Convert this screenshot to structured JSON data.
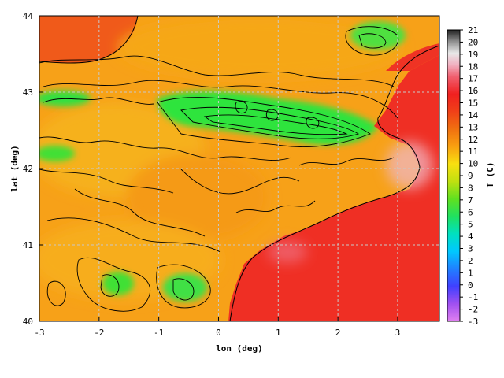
{
  "map": {
    "xlabel": "lon (deg)",
    "ylabel": "lat (deg)",
    "colorbar_label": "T (C)",
    "xlim": [
      -3.0,
      3.7
    ],
    "ylim": [
      40.0,
      44.0
    ],
    "x_ticks": [
      -3,
      -2,
      -1,
      0,
      1,
      2,
      3
    ],
    "y_ticks": [
      40,
      41,
      42,
      43,
      44
    ],
    "x_tick_labels": [
      "-3",
      "-2",
      "-1",
      "0",
      "1",
      "2",
      "3"
    ],
    "y_tick_labels": [
      "40",
      "41",
      "42",
      "43",
      "44"
    ],
    "colorbar_ticks": [
      21,
      20,
      19,
      18,
      17,
      16,
      15,
      14,
      13,
      12,
      11,
      10,
      9,
      8,
      7,
      6,
      5,
      4,
      3,
      2,
      1,
      0,
      -1,
      -2,
      -3
    ],
    "colorbar_range": [
      -3,
      21
    ],
    "grid": true,
    "contour_lines": true,
    "coastline": true,
    "colors": {
      "sea": "#ef2e24",
      "lowland": "#f57a10",
      "hills": "#f8b818",
      "mountains": "#2ee840",
      "warm_coast": "#f0b8c0"
    }
  }
}
